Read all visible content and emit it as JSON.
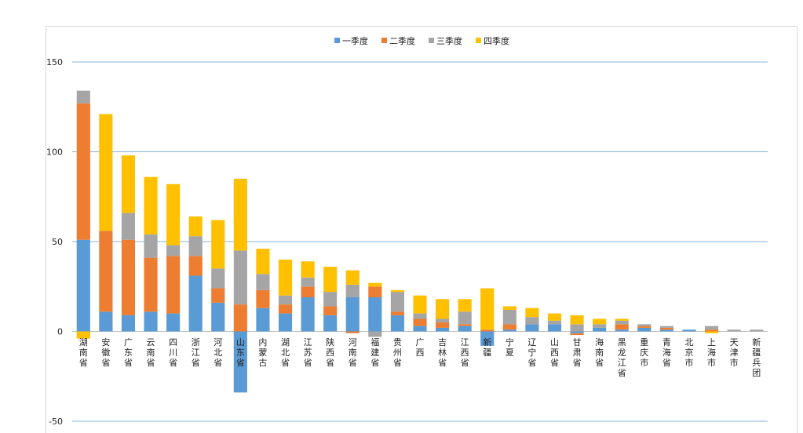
{
  "chart_data": {
    "type": "bar",
    "stacked": true,
    "legend_position": "top",
    "grid": true,
    "ylim": [
      -50,
      150
    ],
    "yticks": [
      -50,
      0,
      50,
      100,
      150
    ],
    "categories": [
      "湖南省",
      "安徽省",
      "广东省",
      "云南省",
      "四川省",
      "浙江省",
      "河北省",
      "山东省",
      "内蒙古",
      "湖北省",
      "江苏省",
      "陕西省",
      "河南省",
      "福建省",
      "贵州省",
      "广西",
      "吉林省",
      "江西省",
      "新疆",
      "宁夏",
      "辽宁省",
      "山西省",
      "甘肃省",
      "海南省",
      "黑龙江省",
      "重庆市",
      "青海省",
      "北京市",
      "上海市",
      "天津市",
      "新疆兵团"
    ],
    "series": [
      {
        "name": "一季度",
        "color": "#5b9bd5",
        "values": [
          51,
          11,
          9,
          11,
          10,
          31,
          16,
          -34,
          13,
          10,
          19,
          9,
          19,
          19,
          9,
          3,
          2,
          3,
          -8,
          1,
          4,
          4,
          -1,
          2,
          1,
          2,
          1,
          1,
          0,
          0,
          0
        ]
      },
      {
        "name": "二季度",
        "color": "#ed7d31",
        "values": [
          76,
          45,
          42,
          30,
          32,
          11,
          8,
          15,
          10,
          5,
          6,
          5,
          -1,
          6,
          2,
          4,
          3,
          1,
          1,
          3,
          0,
          0,
          -1,
          0,
          3,
          1,
          1,
          0,
          1,
          0,
          0
        ]
      },
      {
        "name": "三季度",
        "color": "#a5a5a5",
        "values": [
          7,
          0,
          15,
          13,
          6,
          11,
          11,
          30,
          9,
          5,
          5,
          8,
          7,
          -3,
          11,
          3,
          2,
          7,
          0,
          8,
          4,
          2,
          4,
          2,
          2,
          1,
          1,
          0,
          2,
          1,
          1
        ]
      },
      {
        "name": "四季度",
        "color": "#ffc000",
        "values": [
          -4,
          65,
          32,
          32,
          34,
          11,
          27,
          40,
          14,
          20,
          9,
          14,
          8,
          2,
          1,
          10,
          11,
          7,
          23,
          2,
          5,
          4,
          5,
          3,
          1,
          0,
          0,
          0,
          -1,
          0,
          0
        ]
      }
    ]
  }
}
